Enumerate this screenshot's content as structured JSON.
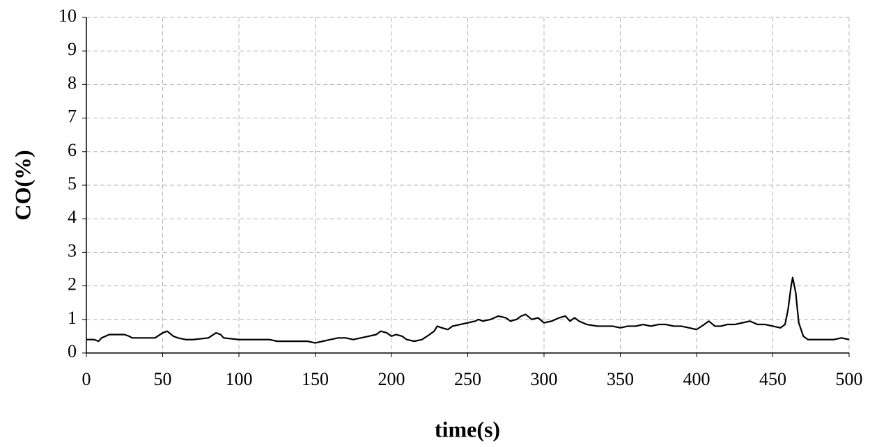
{
  "chart_data": {
    "type": "line",
    "x_label": "time(s)",
    "y_label": "CO(%)",
    "xlim": [
      0,
      500
    ],
    "xticks": [
      0,
      50,
      100,
      150,
      200,
      250,
      300,
      350,
      400,
      450,
      500
    ],
    "ylim": [
      0,
      10
    ],
    "yticks": [
      0,
      1,
      2,
      3,
      4,
      5,
      6,
      7,
      8,
      9,
      10
    ],
    "grid": true,
    "series": [
      {
        "color": "#000000",
        "x": [
          0,
          5,
          8,
          10,
          15,
          20,
          25,
          28,
          30,
          40,
          45,
          50,
          53,
          57,
          60,
          65,
          70,
          80,
          85,
          88,
          90,
          100,
          110,
          115,
          120,
          125,
          130,
          140,
          145,
          150,
          155,
          160,
          165,
          170,
          175,
          180,
          185,
          190,
          193,
          197,
          200,
          203,
          207,
          210,
          215,
          220,
          225,
          228,
          230,
          233,
          237,
          240,
          245,
          250,
          255,
          257,
          260,
          265,
          270,
          275,
          278,
          282,
          285,
          288,
          292,
          296,
          300,
          305,
          310,
          314,
          317,
          320,
          323,
          328,
          335,
          340,
          345,
          350,
          355,
          360,
          365,
          370,
          375,
          380,
          385,
          390,
          395,
          400,
          405,
          408,
          412,
          416,
          420,
          425,
          430,
          435,
          440,
          445,
          450,
          455,
          458,
          460,
          462,
          463,
          465,
          467,
          470,
          473,
          480,
          485,
          490,
          495,
          500
        ],
        "values": [
          0.4,
          0.4,
          0.35,
          0.45,
          0.55,
          0.55,
          0.55,
          0.5,
          0.45,
          0.45,
          0.45,
          0.6,
          0.65,
          0.5,
          0.45,
          0.4,
          0.4,
          0.45,
          0.6,
          0.55,
          0.45,
          0.4,
          0.4,
          0.4,
          0.4,
          0.35,
          0.35,
          0.35,
          0.35,
          0.3,
          0.35,
          0.4,
          0.45,
          0.45,
          0.4,
          0.45,
          0.5,
          0.55,
          0.65,
          0.6,
          0.5,
          0.55,
          0.5,
          0.4,
          0.35,
          0.4,
          0.55,
          0.65,
          0.8,
          0.75,
          0.7,
          0.8,
          0.85,
          0.9,
          0.95,
          1.0,
          0.95,
          1.0,
          1.1,
          1.05,
          0.95,
          1.0,
          1.1,
          1.15,
          1.0,
          1.05,
          0.9,
          0.95,
          1.05,
          1.1,
          0.95,
          1.05,
          0.95,
          0.85,
          0.8,
          0.8,
          0.8,
          0.75,
          0.8,
          0.8,
          0.85,
          0.8,
          0.85,
          0.85,
          0.8,
          0.8,
          0.75,
          0.7,
          0.85,
          0.95,
          0.8,
          0.8,
          0.85,
          0.85,
          0.9,
          0.95,
          0.85,
          0.85,
          0.8,
          0.75,
          0.85,
          1.3,
          2.0,
          2.25,
          1.8,
          0.9,
          0.5,
          0.4,
          0.4,
          0.4,
          0.4,
          0.45,
          0.4
        ]
      }
    ]
  }
}
